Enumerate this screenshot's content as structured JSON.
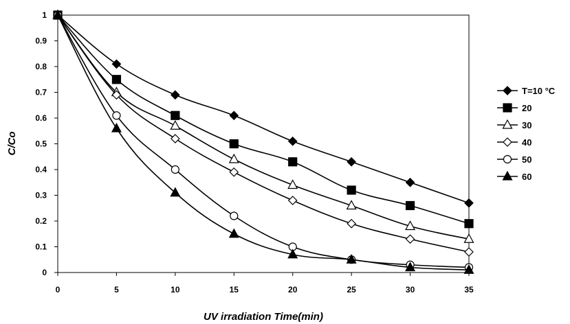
{
  "chart_data": {
    "type": "line",
    "xlabel": "UV irradiation Time(min)",
    "ylabel": "C/Co",
    "x": [
      0,
      5,
      10,
      15,
      20,
      25,
      30,
      35
    ],
    "x_ticks": [
      "0",
      "5",
      "10",
      "15",
      "20",
      "25",
      "30",
      "35"
    ],
    "y_ticks": [
      "0",
      "0.1",
      "0.2",
      "0.3",
      "0.4",
      "0.5",
      "0.6",
      "0.7",
      "0.8",
      "0.9",
      "1"
    ],
    "xlim": [
      0,
      35
    ],
    "ylim": [
      0,
      1
    ],
    "grid": false,
    "legend_position": "right",
    "line_color": "#000000",
    "series": [
      {
        "name": "T=10 °C",
        "marker": "diamond-filled",
        "values": [
          1.0,
          0.81,
          0.69,
          0.61,
          0.51,
          0.43,
          0.35,
          0.27
        ]
      },
      {
        "name": "20",
        "marker": "square-filled",
        "values": [
          1.0,
          0.75,
          0.61,
          0.5,
          0.43,
          0.32,
          0.26,
          0.19
        ]
      },
      {
        "name": "30",
        "marker": "triangle-open",
        "values": [
          1.0,
          0.7,
          0.57,
          0.44,
          0.34,
          0.26,
          0.18,
          0.13
        ]
      },
      {
        "name": "40",
        "marker": "diamond-open",
        "values": [
          1.0,
          0.69,
          0.52,
          0.39,
          0.28,
          0.19,
          0.13,
          0.08
        ]
      },
      {
        "name": "50",
        "marker": "circle-open",
        "values": [
          1.0,
          0.61,
          0.4,
          0.22,
          0.1,
          0.05,
          0.03,
          0.02
        ]
      },
      {
        "name": "60",
        "marker": "triangle-filled",
        "values": [
          1.0,
          0.56,
          0.31,
          0.15,
          0.07,
          0.05,
          0.02,
          0.01
        ]
      }
    ]
  }
}
